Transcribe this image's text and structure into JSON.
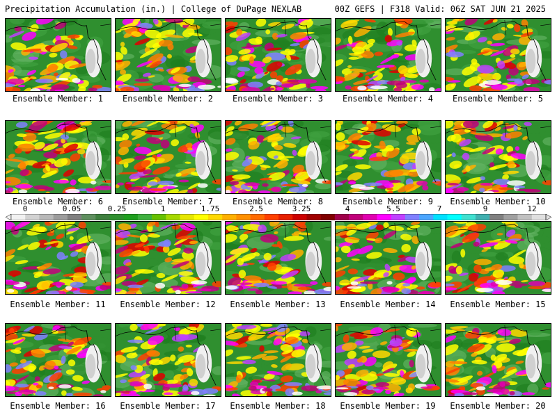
{
  "header": {
    "title_left": "Precipitation Accumulation (in.) | College of DuPage NEXLAB",
    "title_right": "00Z GEFS | F318 Valid: 06Z SAT JUN 21 2025"
  },
  "colorbar": {
    "labels": [
      "0",
      "0.05",
      "0.25",
      "1",
      "1.75",
      "2.5",
      "3.25",
      "4",
      "5.5",
      "7",
      "9",
      "12"
    ],
    "colors": [
      "#f2f2f2",
      "#d2d2d2",
      "#b8b8b8",
      "#9c9c9c",
      "#7f7f7f",
      "#5f8f5f",
      "#3f7f3f",
      "#2f8f2f",
      "#1f9f1f",
      "#3fb03f",
      "#66c000",
      "#a6d800",
      "#e6e600",
      "#ffff00",
      "#ffd800",
      "#ffb000",
      "#ff9000",
      "#ff6a00",
      "#ff4000",
      "#e62000",
      "#cc0000",
      "#a00000",
      "#800000",
      "#a0004a",
      "#c0007a",
      "#e000b0",
      "#ff00ff",
      "#c040ff",
      "#8080ff",
      "#4ca6ff",
      "#00e0ff",
      "#00ffff",
      "#40e0d0",
      "#40b0b0",
      "#808080",
      "#a0a0a0",
      "#c0c0c0",
      "#e0e0e0"
    ]
  },
  "panels": [
    {
      "label": "Ensemble Member: 1"
    },
    {
      "label": "Ensemble Member: 2"
    },
    {
      "label": "Ensemble Member: 3"
    },
    {
      "label": "Ensemble Member: 4"
    },
    {
      "label": "Ensemble Member: 5"
    },
    {
      "label": "Ensemble Member: 6"
    },
    {
      "label": "Ensemble Member: 7"
    },
    {
      "label": "Ensemble Member: 8"
    },
    {
      "label": "Ensemble Member: 9"
    },
    {
      "label": "Ensemble Member: 10"
    },
    {
      "label": "Ensemble Member: 11"
    },
    {
      "label": "Ensemble Member: 12"
    },
    {
      "label": "Ensemble Member: 13"
    },
    {
      "label": "Ensemble Member: 14"
    },
    {
      "label": "Ensemble Member: 15"
    },
    {
      "label": "Ensemble Member: 16"
    },
    {
      "label": "Ensemble Member: 17"
    },
    {
      "label": "Ensemble Member: 18"
    },
    {
      "label": "Ensemble Member: 19"
    },
    {
      "label": "Ensemble Member: 20"
    }
  ]
}
